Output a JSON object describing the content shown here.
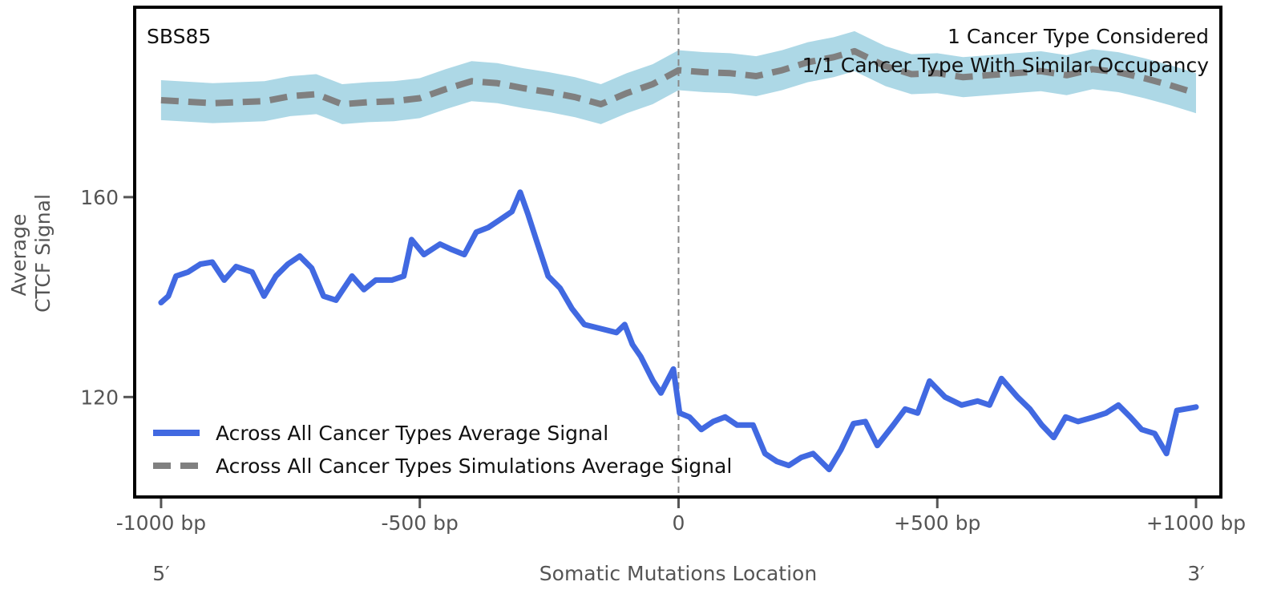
{
  "chart_data": {
    "type": "line",
    "title": "",
    "xlabel": "Somatic Mutations Location",
    "ylabel": [
      "Average",
      "CTCF Signal"
    ],
    "xlim": [
      -1051,
      1048
    ],
    "ylim": [
      100,
      198
    ],
    "x_ticks": [
      {
        "value": -1000,
        "label": "-1000 bp"
      },
      {
        "value": -500,
        "label": "-500 bp"
      },
      {
        "value": 0,
        "label": "0"
      },
      {
        "value": 500,
        "label": "+500 bp"
      },
      {
        "value": 1000,
        "label": "+1000 bp"
      }
    ],
    "y_ticks": [
      {
        "value": 120,
        "label": "120"
      },
      {
        "value": 160,
        "label": "160"
      }
    ],
    "x_end_labels": {
      "left": "5′",
      "right": "3′"
    },
    "grid": false,
    "vline": {
      "x": 0,
      "style": "dashed",
      "color": "#888888"
    },
    "annotations": {
      "top_left": "SBS85",
      "top_right": [
        "1 Cancer Type Considered",
        "1/1 Cancer Type With Similar Occupancy"
      ]
    },
    "legend": {
      "placement": "lower-left",
      "entries": [
        {
          "label": "Across All Cancer Types Average Signal",
          "color": "#4169E1",
          "style": "solid"
        },
        {
          "label": "Across All Cancer Types Simulations Average Signal",
          "color": "#808080",
          "style": "dashed"
        }
      ]
    },
    "series": [
      {
        "name": "Across All Cancer Types Average Signal",
        "color": "#4169E1",
        "style": "solid",
        "x": [
          -1000,
          -986,
          -971,
          -948,
          -924,
          -901,
          -878,
          -855,
          -824,
          -801,
          -778,
          -755,
          -732,
          -709,
          -686,
          -662,
          -631,
          -608,
          -585,
          -554,
          -531,
          -516,
          -492,
          -461,
          -438,
          -414,
          -391,
          -368,
          -345,
          -322,
          -306,
          -291,
          -275,
          -252,
          -229,
          -206,
          -182,
          -151,
          -120,
          -104,
          -89,
          -73,
          -49,
          -34,
          -10,
          2,
          21,
          44,
          67,
          90,
          113,
          144,
          167,
          190,
          213,
          237,
          260,
          291,
          314,
          338,
          361,
          384,
          415,
          438,
          462,
          485,
          515,
          547,
          578,
          601,
          624,
          655,
          679,
          702,
          725,
          748,
          772,
          803,
          826,
          850,
          873,
          895,
          920,
          943,
          963,
          995,
          1000
        ],
        "y": [
          138.9,
          140.2,
          144.2,
          145.0,
          146.6,
          147.0,
          143.4,
          146.1,
          145.0,
          140.2,
          144.2,
          146.6,
          148.2,
          145.8,
          140.2,
          139.4,
          144.2,
          141.5,
          143.4,
          143.4,
          144.2,
          151.5,
          148.5,
          150.6,
          149.5,
          148.5,
          153.0,
          153.9,
          155.5,
          157.1,
          161.0,
          156.6,
          151.5,
          144.2,
          141.8,
          137.7,
          134.5,
          133.7,
          132.9,
          134.5,
          130.5,
          128.1,
          123.2,
          120.8,
          125.6,
          116.8,
          116.0,
          113.5,
          115.1,
          116.0,
          114.4,
          114.4,
          108.7,
          107.1,
          106.3,
          107.9,
          108.7,
          105.5,
          109.5,
          114.7,
          115.1,
          110.3,
          114.4,
          117.6,
          116.8,
          123.2,
          120.0,
          118.4,
          119.2,
          118.4,
          123.7,
          120.0,
          117.6,
          114.4,
          111.9,
          116.0,
          115.1,
          116.0,
          116.8,
          118.4,
          116.0,
          113.5,
          112.7,
          108.7,
          117.3,
          117.9,
          118.0
        ]
      },
      {
        "name": "Across All Cancer Types Simulations Average Signal",
        "color": "#808080",
        "style": "dashed",
        "band_color": "#ADD8E6",
        "band_halfwidth": 4,
        "x": [
          -1000,
          -900,
          -800,
          -750,
          -700,
          -650,
          -600,
          -550,
          -500,
          -450,
          -400,
          -350,
          -300,
          -250,
          -200,
          -150,
          -100,
          -50,
          0,
          50,
          100,
          150,
          200,
          250,
          300,
          340,
          400,
          450,
          500,
          550,
          600,
          650,
          700,
          750,
          800,
          850,
          900,
          950,
          1000
        ],
        "y": [
          179.4,
          178.8,
          179.2,
          180.2,
          180.6,
          178.6,
          179.0,
          179.2,
          179.8,
          181.6,
          183.2,
          182.8,
          181.8,
          181.0,
          180.0,
          178.6,
          180.8,
          182.6,
          185.4,
          185.0,
          184.8,
          184.2,
          185.4,
          187.0,
          188.0,
          189.2,
          186.2,
          184.6,
          184.8,
          184.0,
          184.4,
          184.8,
          185.2,
          184.4,
          185.6,
          185.0,
          183.8,
          182.4,
          180.8
        ]
      }
    ]
  }
}
